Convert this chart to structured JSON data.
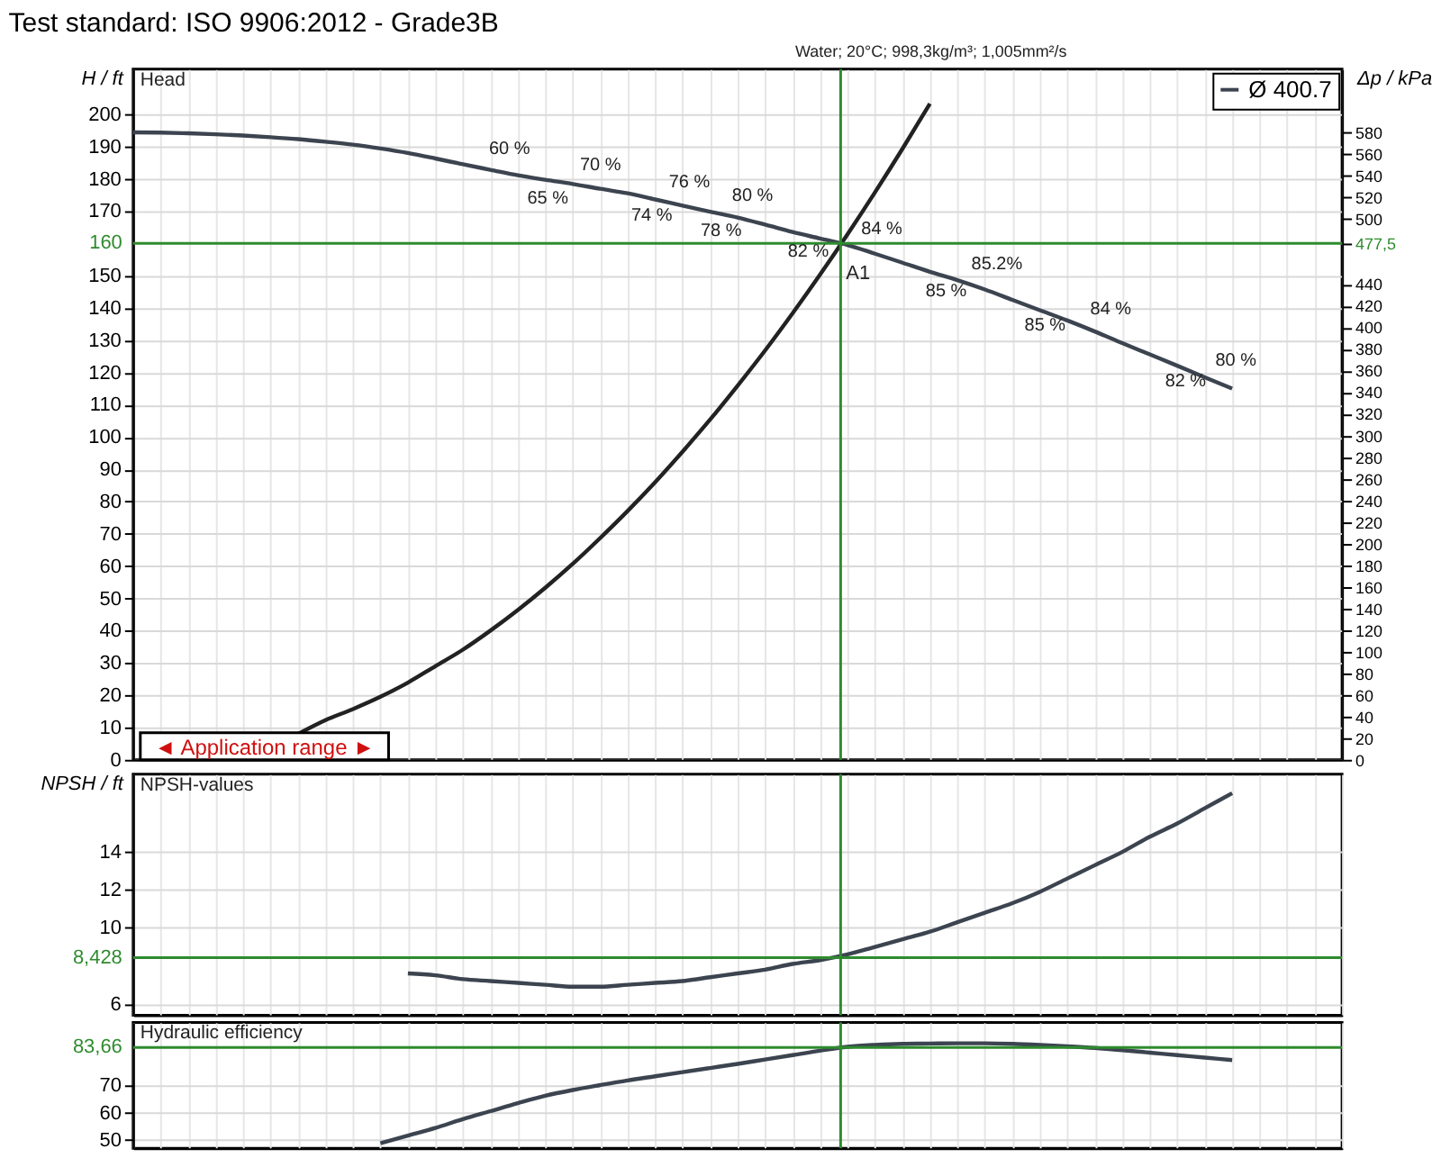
{
  "chart_data": [
    {
      "type": "line",
      "title": "Test standard: ISO 9906:2012 - Grade3B",
      "subtitle": "Water; 20°C; 998,3kg/m³; 1,005mm²/s",
      "ylabel": "H / ft",
      "y2label": "Δp / kPa",
      "categories": [
        null,
        null,
        null,
        null,
        null,
        null,
        null,
        null,
        null,
        null,
        null,
        null,
        null,
        null,
        null,
        null,
        null,
        null,
        null,
        null,
        null,
        null,
        null,
        null,
        null,
        null,
        null,
        null,
        null,
        null,
        null,
        null,
        null,
        null,
        null,
        null,
        null,
        null,
        null,
        null,
        null,
        null,
        null,
        null,
        null
      ],
      "series": [
        {
          "name": "Ø 400.7",
          "color": "#3c4450",
          "values": [
            194.4,
            194.3,
            194.1,
            193.8,
            193.4,
            192.9,
            192.3,
            191.5,
            190.6,
            189.4,
            188.0,
            186.3,
            184.5,
            182.8,
            181.1,
            179.7,
            178.4,
            176.9,
            175.5,
            173.6,
            171.7,
            169.8,
            168.0,
            165.8,
            163.5,
            161.5,
            159.5,
            156.8,
            154.0,
            151.2,
            148.6,
            145.7,
            142.5,
            139.3,
            136.1,
            132.7,
            129.1,
            125.6,
            122.1,
            118.5,
            115.0,
            null,
            null,
            null,
            null
          ]
        },
        {
          "color": "#222222",
          "values": [
            null,
            null,
            null,
            null,
            null,
            null,
            8,
            12.3,
            15.7,
            19.5,
            23.9,
            29,
            34.1,
            40,
            46.4,
            53.3,
            60.7,
            68.7,
            77.1,
            86,
            95.5,
            105.4,
            115.9,
            126.8,
            138.3,
            150.3,
            162.8,
            175.8,
            189.3,
            203.3,
            null,
            null,
            null,
            null,
            null,
            null,
            null,
            null,
            null,
            null,
            null,
            null,
            null,
            null,
            null
          ]
        }
      ],
      "ylim": [
        0,
        214
      ],
      "yticks": [
        0,
        10,
        20,
        30,
        40,
        50,
        60,
        70,
        80,
        90,
        100,
        110,
        120,
        130,
        140,
        150,
        170,
        180,
        190,
        200
      ],
      "y2lim": [
        0,
        638.8
      ],
      "y2ticks": [
        0,
        20,
        40,
        60,
        80,
        100,
        120,
        140,
        160,
        180,
        200,
        220,
        240,
        260,
        280,
        300,
        320,
        340,
        360,
        380,
        400,
        420,
        440,
        {
          "value": 477.5,
          "label": "477,5"
        },
        500,
        520,
        540,
        560,
        580
      ],
      "ref_lines": [
        {
          "axis": "y",
          "value": 160,
          "label": "160",
          "color": "#2e8b2e"
        }
      ],
      "annotations": [
        "Head",
        "◄ Application range ►",
        {
          "text": "A1",
          "y": 160
        },
        {
          "text": "60 %",
          "y": 183.1
        },
        {
          "text": "65 %",
          "y": 180.8
        },
        {
          "text": "70 %",
          "y": 178.2
        },
        {
          "text": "74 %",
          "y": 175.5
        },
        {
          "text": "76 %",
          "y": 172.9
        },
        {
          "text": "78 %",
          "y": 170.7
        },
        {
          "text": "80 %",
          "y": 168.6
        },
        {
          "text": "82 %",
          "y": 164.2
        },
        {
          "text": "84 %",
          "y": 158.5
        },
        {
          "text": "85 %",
          "y": 152
        },
        {
          "text": "85.2%",
          "y": 147.5
        },
        {
          "text": "85 %",
          "y": 141.5
        },
        {
          "text": "84 %",
          "y": 133.7
        },
        {
          "text": "82 %",
          "y": 124.1
        },
        {
          "text": "80 %",
          "y": 117.6
        }
      ],
      "grid": true,
      "legend": "top right",
      "line_style": "solid"
    },
    {
      "type": "line",
      "ylabel": "NPSH / ft",
      "categories": [
        null,
        null,
        null,
        null,
        null,
        null,
        null,
        null,
        null,
        null,
        null,
        null,
        null,
        null,
        null,
        null,
        null,
        null,
        null,
        null,
        null,
        null,
        null,
        null,
        null,
        null,
        null,
        null,
        null,
        null,
        null,
        null,
        null,
        null,
        null,
        null,
        null,
        null,
        null,
        null,
        null,
        null,
        null,
        null,
        null
      ],
      "series": [
        {
          "color": "#3c4450",
          "values": [
            null,
            null,
            null,
            null,
            null,
            null,
            null,
            null,
            null,
            null,
            7.6,
            7.5,
            7.3,
            7.2,
            7.1,
            7.0,
            6.9,
            6.9,
            7.0,
            7.1,
            7.2,
            7.4,
            7.6,
            7.8,
            8.1,
            8.3,
            8.6,
            9.0,
            9.4,
            9.8,
            10.3,
            10.8,
            11.3,
            11.9,
            12.6,
            13.3,
            14.0,
            14.8,
            15.5,
            16.3,
            17.1,
            null,
            null,
            null,
            null
          ]
        }
      ],
      "ylim": [
        5.4,
        18.1
      ],
      "yticks": [
        6,
        10,
        12,
        14
      ],
      "ref_lines": [
        {
          "axis": "y",
          "value": 8.428,
          "label": "8,428",
          "color": "#2e8b2e"
        }
      ],
      "annotations": [
        "NPSH-values"
      ],
      "grid": true,
      "line_style": "solid"
    },
    {
      "type": "line",
      "categories": [
        null,
        null,
        null,
        null,
        null,
        null,
        null,
        null,
        null,
        null,
        null,
        null,
        null,
        null,
        null,
        null,
        null,
        null,
        null,
        null,
        null,
        null,
        null,
        null,
        null,
        null,
        null,
        null,
        null,
        null,
        null,
        null,
        null,
        null,
        null,
        null,
        null,
        null,
        null,
        null,
        null,
        null,
        null,
        null,
        null
      ],
      "series": [
        {
          "color": "#3c4450",
          "values": [
            null,
            null,
            null,
            null,
            null,
            null,
            null,
            null,
            null,
            48.8,
            51.6,
            54.4,
            57.6,
            60.5,
            63.4,
            66.1,
            68.2,
            70.0,
            71.7,
            73.2,
            74.7,
            76.2,
            77.7,
            79.3,
            80.9,
            82.5,
            83.9,
            84.6,
            85.0,
            85.1,
            85.2,
            85.2,
            85.0,
            84.6,
            84.1,
            83.5,
            82.7,
            81.8,
            80.9,
            80.0,
            79.1,
            null,
            null,
            null,
            null
          ]
        }
      ],
      "ylim": [
        47,
        92.8
      ],
      "yticks": [
        50,
        60,
        70
      ],
      "ref_lines": [
        {
          "axis": "y",
          "value": 83.66,
          "label": "83,66",
          "color": "#2e8b2e"
        }
      ],
      "annotations": [
        "Hydraulic efficiency"
      ],
      "grid": true,
      "line_style": "solid"
    }
  ]
}
